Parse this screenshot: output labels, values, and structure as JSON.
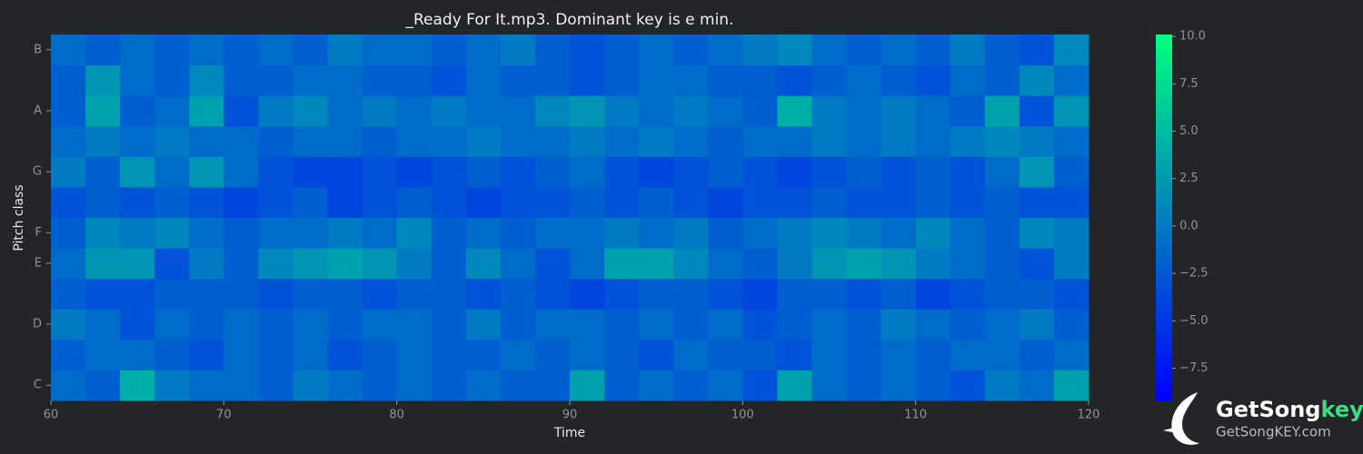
{
  "chart_data": {
    "type": "heatmap",
    "title": "_Ready For It.mp3. Dominant key is e min.",
    "xlabel": "Time",
    "ylabel": "Pitch class",
    "categories": [
      "C",
      null,
      "D",
      null,
      "E",
      "F",
      null,
      "G",
      null,
      "A",
      null,
      "B"
    ],
    "x": [
      60,
      62,
      64,
      66,
      68,
      70,
      72,
      74,
      76,
      78,
      80,
      82,
      84,
      86,
      88,
      90,
      92,
      94,
      96,
      98,
      100,
      102,
      104,
      106,
      108,
      110,
      112,
      114,
      116,
      118
    ],
    "xlim": [
      60,
      120
    ],
    "xticks": [
      60,
      70,
      80,
      90,
      100,
      110,
      120
    ],
    "z": [
      [
        -1,
        -2,
        4,
        0,
        -1,
        -1,
        -2,
        0,
        -1,
        -2,
        -1,
        -2,
        -1,
        -2,
        -2,
        3,
        -2,
        -1,
        -2,
        -1,
        -3,
        3,
        -1,
        -2,
        -1,
        -2,
        -3,
        0,
        -1,
        3
      ],
      [
        -2,
        -1,
        -1,
        -2,
        -3,
        -1,
        -2,
        -1,
        -3,
        -2,
        -1,
        -2,
        -2,
        -1,
        -2,
        -1,
        -2,
        -3,
        -1,
        -2,
        -2,
        -3,
        -1,
        -2,
        -1,
        -2,
        -1,
        -1,
        -2,
        -1
      ],
      [
        0,
        -1,
        -3,
        -1,
        -2,
        -1,
        -2,
        -1,
        -2,
        -1,
        -1,
        -2,
        0,
        -2,
        -1,
        -1,
        -2,
        -1,
        -2,
        -1,
        -3,
        -2,
        -1,
        -2,
        0,
        -1,
        -2,
        -1,
        0,
        -2
      ],
      [
        -2,
        -3,
        -3,
        -2,
        -2,
        -2,
        -3,
        -2,
        -2,
        -3,
        -2,
        -2,
        -3,
        -2,
        -3,
        -4,
        -3,
        -2,
        -2,
        -3,
        -4,
        -2,
        -2,
        -3,
        -2,
        -4,
        -3,
        -2,
        -2,
        -3
      ],
      [
        -1,
        2,
        2,
        -3,
        0,
        -2,
        1,
        2,
        3,
        2,
        0,
        -2,
        1,
        -1,
        -3,
        -1,
        3,
        3,
        1,
        -1,
        -2,
        0,
        2,
        3,
        2,
        0,
        -1,
        -2,
        -3,
        0
      ],
      [
        -2,
        1,
        0,
        1,
        -1,
        -2,
        -1,
        -1,
        0,
        -1,
        1,
        -2,
        -1,
        -2,
        -1,
        -1,
        0,
        -1,
        0,
        -2,
        -1,
        0,
        1,
        0,
        -1,
        1,
        -1,
        -2,
        1,
        0
      ],
      [
        -3,
        -2,
        -3,
        -2,
        -3,
        -4,
        -3,
        -2,
        -4,
        -3,
        -2,
        -3,
        -4,
        -3,
        -3,
        -2,
        -3,
        -2,
        -3,
        -4,
        -3,
        -3,
        -2,
        -3,
        -3,
        -2,
        -3,
        -2,
        -3,
        -3
      ],
      [
        0,
        -2,
        2,
        -1,
        2,
        -1,
        -3,
        -4,
        -4,
        -3,
        -4,
        -3,
        -2,
        -3,
        -2,
        -1,
        -3,
        -4,
        -3,
        -2,
        -3,
        -4,
        -3,
        -2,
        -3,
        -2,
        -3,
        -1,
        2,
        -2
      ],
      [
        -1,
        0,
        -1,
        0,
        -1,
        -1,
        -2,
        -1,
        -1,
        -2,
        -1,
        -1,
        0,
        -1,
        -1,
        0,
        -1,
        0,
        -1,
        -2,
        -1,
        -1,
        0,
        -1,
        0,
        -1,
        0,
        1,
        0,
        -1
      ],
      [
        -2,
        3,
        -2,
        -1,
        3,
        -3,
        0,
        1,
        -1,
        0,
        -1,
        0,
        -1,
        -1,
        1,
        2,
        0,
        -1,
        0,
        -1,
        -2,
        4,
        0,
        -1,
        0,
        -1,
        -2,
        3,
        -3,
        2
      ],
      [
        -2,
        2,
        -1,
        -2,
        1,
        -2,
        -2,
        -1,
        -1,
        -2,
        -2,
        -3,
        -1,
        -2,
        -2,
        -3,
        -2,
        -1,
        -1,
        -2,
        -2,
        -3,
        -2,
        -1,
        -2,
        -3,
        -1,
        -2,
        1,
        -1
      ],
      [
        -1,
        -2,
        -1,
        -2,
        -1,
        -2,
        -1,
        -2,
        0,
        -1,
        -1,
        -2,
        -1,
        0,
        -2,
        -3,
        -2,
        -1,
        -2,
        -1,
        0,
        1,
        -1,
        -2,
        -1,
        -2,
        0,
        -2,
        -3,
        1
      ]
    ],
    "colormap": [
      "#0000ff",
      "#00ff80"
    ],
    "clim": [
      -9.2,
      10.1
    ],
    "cticks": [
      {
        "value": -7.5,
        "label": "−7.5"
      },
      {
        "value": -5,
        "label": "−5.0"
      },
      {
        "value": -2.5,
        "label": "−2.5"
      },
      {
        "value": 0,
        "label": "0.0"
      },
      2.5,
      {
        "value": 5,
        "label": "5.0"
      },
      7.5,
      {
        "value": 10,
        "label": "10.0"
      }
    ]
  },
  "logo": {
    "name": "GetSong",
    "name_accent": "key",
    "url": "GetSongKEY.com"
  }
}
